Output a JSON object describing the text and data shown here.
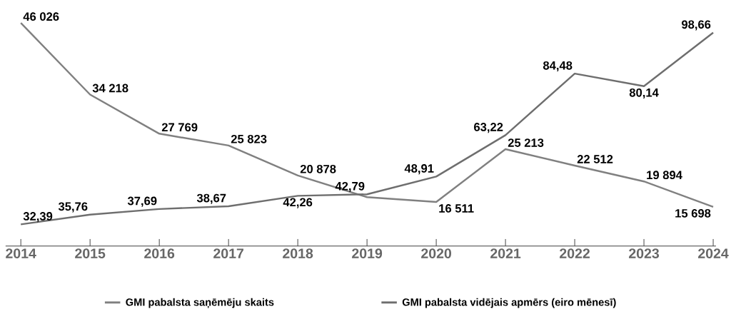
{
  "chart_data": {
    "type": "line",
    "categories": [
      "2014",
      "2015",
      "2016",
      "2017",
      "2018",
      "2019",
      "2020",
      "2021",
      "2022",
      "2023",
      "2024"
    ],
    "series": [
      {
        "name": "GMI pabalsta saņēmēju skaits",
        "color": "#808080",
        "values": [
          46026,
          34218,
          27769,
          25823,
          20878,
          17300,
          16511,
          25213,
          22512,
          19894,
          15698
        ],
        "value_labels": [
          "46 026",
          "34 218",
          "27 769",
          "25 823",
          "20 878",
          null,
          "16 511",
          "25 213",
          "22 512",
          "19 894",
          "15 698"
        ]
      },
      {
        "name": "GMI pabalsta vidējais apmērs (eiro mēnesī)",
        "color": "#6e6e6e",
        "axis": "y2",
        "values": [
          32.39,
          35.76,
          37.69,
          38.67,
          42.26,
          42.79,
          48.91,
          63.22,
          84.48,
          80.14,
          98.66
        ],
        "value_labels": [
          "32,39",
          "35,76",
          "37,69",
          "38,67",
          "42,26",
          "42,79",
          "48,91",
          "63,22",
          "84,48",
          "80,14",
          "98,66"
        ]
      }
    ],
    "tick_labels": "x",
    "legend": "bottom",
    "marker": "none",
    "line_style": "solid"
  }
}
